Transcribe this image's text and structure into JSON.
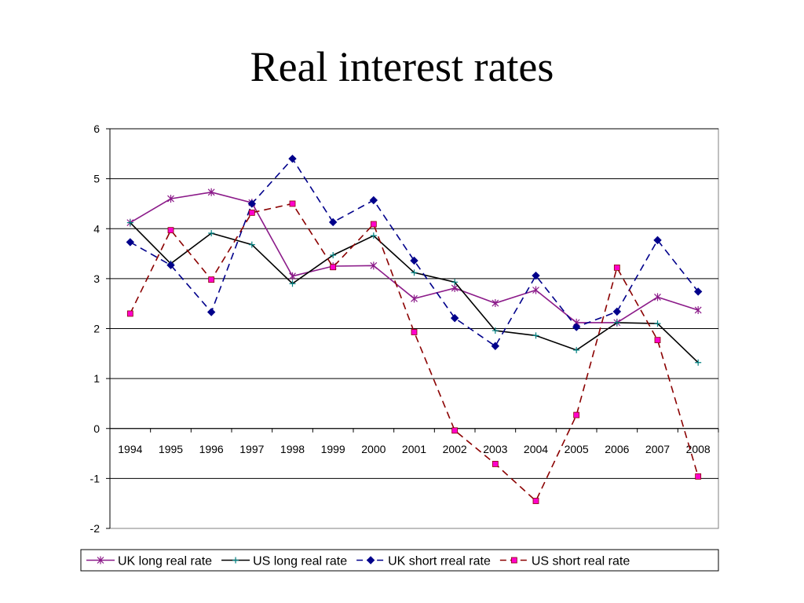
{
  "slide": {
    "title": "Real interest rates"
  },
  "chart_data": {
    "type": "line",
    "title": "",
    "xlabel": "",
    "ylabel": "",
    "categories": [
      "1994",
      "1995",
      "1996",
      "1997",
      "1998",
      "1999",
      "2000",
      "2001",
      "2002",
      "2003",
      "2004",
      "2005",
      "2006",
      "2007",
      "2008"
    ],
    "ylim": [
      -2,
      6
    ],
    "yticks": [
      -2,
      -1,
      0,
      1,
      2,
      3,
      4,
      5,
      6
    ],
    "grid": true,
    "legend_position": "bottom",
    "series": [
      {
        "name": "UK long real rate",
        "color": "#8B1A89",
        "dash": "solid",
        "marker": "asterisk",
        "values": [
          4.12,
          4.6,
          4.73,
          4.52,
          3.05,
          3.25,
          3.26,
          2.6,
          2.81,
          2.51,
          2.77,
          2.12,
          2.12,
          2.63,
          2.37
        ]
      },
      {
        "name": "US long real rate",
        "color": "#000000",
        "dash": "solid",
        "marker": "plus",
        "values": [
          4.12,
          3.3,
          3.91,
          3.68,
          2.9,
          3.47,
          3.86,
          3.12,
          2.93,
          1.96,
          1.86,
          1.57,
          2.12,
          2.1,
          1.32
        ]
      },
      {
        "name": "UK short rreal rate",
        "color": "#00008B",
        "dash": "dashed",
        "marker": "diamond",
        "values": [
          3.73,
          3.27,
          2.33,
          4.5,
          5.4,
          4.13,
          4.57,
          3.36,
          2.21,
          1.65,
          3.06,
          2.03,
          2.34,
          3.77,
          2.74
        ]
      },
      {
        "name": "US short real rate",
        "color": "#8B0000",
        "marker_color": "#FF00CC",
        "dash": "dashed",
        "marker": "square",
        "values": [
          2.3,
          3.97,
          2.98,
          4.32,
          4.5,
          3.23,
          4.09,
          1.93,
          -0.04,
          -0.71,
          -1.45,
          0.27,
          3.22,
          1.77,
          -0.96
        ]
      }
    ]
  }
}
